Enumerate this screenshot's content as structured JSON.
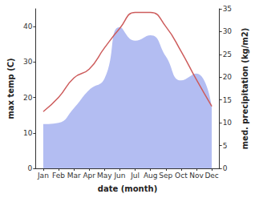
{
  "chart_data": {
    "type": "line",
    "x_label": "date (month)",
    "y_label": "max temp (C)",
    "y2_label": "med. precipitation (kg/m2)",
    "categories": [
      "Jan",
      "Feb",
      "Mar",
      "Apr",
      "May",
      "Jun",
      "Jul",
      "Aug",
      "Sep",
      "Oct",
      "Nov",
      "Dec"
    ],
    "series": [
      {
        "name": "med. precipitation",
        "type": "area",
        "axis": "y2",
        "color": "#b3bdf2",
        "values": [
          9.7,
          10,
          13.2,
          17.2,
          19.7,
          31,
          28,
          29.2,
          24.6,
          19.3,
          20.8,
          13.5
        ]
      },
      {
        "name": "max temp",
        "type": "line",
        "color": "#cd5c5c",
        "values": [
          16,
          20,
          25.5,
          28,
          34,
          39.5,
          44,
          44,
          40,
          33,
          25,
          17.5
        ]
      }
    ],
    "ylim": [
      0,
      45
    ],
    "yticks": [
      0,
      10,
      20,
      30,
      40
    ],
    "y2lim": [
      0,
      35
    ],
    "y2ticks": [
      0,
      5,
      10,
      15,
      20,
      25,
      30,
      35
    ],
    "grid": false
  }
}
